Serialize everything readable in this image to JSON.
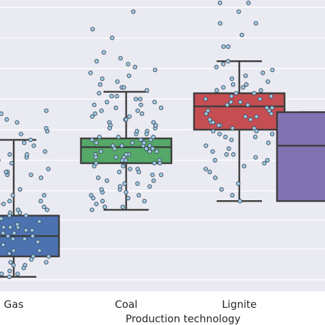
{
  "chart_data": {
    "type": "box",
    "title": "",
    "xlabel": "Production technology",
    "ylabel": "",
    "categories": [
      "Gas",
      "Coal",
      "Lignite",
      ""
    ],
    "grid": "horizontal",
    "legend": "none",
    "value_axis_visible_range": [
      0,
      100
    ],
    "background_color": "#eaeaf2",
    "grid_color": "#ffffff",
    "point_color": "#9ec9e2",
    "boxes": [
      {
        "category": "Gas",
        "color": "#4c72b0",
        "whisker_low": 5,
        "q1": 12,
        "median": 19,
        "q3": 26,
        "whisker_high": 52
      },
      {
        "category": "Coal",
        "color": "#55a868",
        "whisker_low": 28,
        "q1": 44,
        "median": 49.5,
        "q3": 52.5,
        "whisker_high": 68.5
      },
      {
        "category": "Lignite",
        "color": "#c44e52",
        "whisker_low": 31,
        "q1": 55.5,
        "median": 63.5,
        "q3": 68,
        "whisker_high": 79
      },
      {
        "category": "",
        "color": "#8172b2",
        "whisker_low": 31,
        "q1": 31,
        "median": 50,
        "q3": 61.5,
        "whisker_high": 61.5
      }
    ],
    "points": [
      {
        "category": "Gas",
        "values": [
          18,
          22,
          25,
          16,
          13,
          20,
          27,
          31,
          35,
          40,
          45,
          50,
          9,
          11,
          14,
          17,
          21,
          24,
          28,
          33,
          38,
          43,
          48,
          55,
          60,
          7,
          10,
          15,
          19,
          23,
          26,
          30,
          36,
          42,
          47,
          53,
          58,
          6,
          8,
          12,
          16,
          20,
          25,
          29,
          34,
          39,
          44,
          49,
          54,
          59,
          21,
          18,
          23,
          15,
          27,
          32,
          37,
          41,
          46,
          51,
          56,
          61,
          5,
          9,
          13,
          17,
          22,
          26,
          31,
          35,
          40,
          45,
          50,
          19,
          24,
          28,
          33,
          14,
          11,
          8,
          6,
          20,
          25,
          30,
          36,
          41,
          47,
          52,
          57,
          62,
          18,
          22,
          27,
          31,
          16,
          12,
          10
        ]
      },
      {
        "category": "Coal",
        "values": [
          49,
          51,
          46,
          53,
          55,
          44,
          58,
          60,
          62,
          64,
          66,
          42,
          40,
          38,
          36,
          34,
          32,
          30,
          28,
          47,
          50,
          52,
          48,
          45,
          43,
          57,
          59,
          61,
          63,
          65,
          67,
          69,
          71,
          73,
          75,
          77,
          79,
          41,
          39,
          37,
          35,
          33,
          31,
          29,
          50,
          49,
          48,
          52,
          54,
          56,
          46,
          44,
          53,
          51,
          47,
          82,
          87,
          90,
          96,
          70,
          72,
          74,
          76,
          78,
          80,
          68,
          65,
          62,
          59,
          56,
          41,
          43,
          45,
          38,
          36,
          34,
          52,
          54,
          57,
          60,
          63,
          66,
          48,
          50,
          46,
          44,
          42,
          55,
          53,
          51,
          49,
          47,
          45,
          58,
          61,
          64,
          67,
          70,
          40,
          37,
          35,
          33,
          31,
          29,
          32,
          50,
          52
        ]
      },
      {
        "category": "Lignite",
        "values": [
          63,
          65,
          61,
          67,
          69,
          59,
          57,
          55,
          53,
          51,
          71,
          73,
          75,
          77,
          79,
          47,
          45,
          43,
          41,
          39,
          37,
          35,
          33,
          31,
          64,
          66,
          62,
          60,
          68,
          70,
          72,
          58,
          56,
          54,
          52,
          50,
          48,
          46,
          44,
          42,
          88,
          84,
          84,
          92,
          92,
          96,
          99,
          99,
          63,
          61,
          65,
          67,
          69,
          71,
          59,
          57,
          55,
          53,
          74,
          76,
          78,
          49,
          47,
          45,
          62,
          64,
          66,
          68,
          70,
          60,
          58,
          56,
          54
        ]
      },
      {
        "category": "",
        "values": []
      }
    ]
  }
}
